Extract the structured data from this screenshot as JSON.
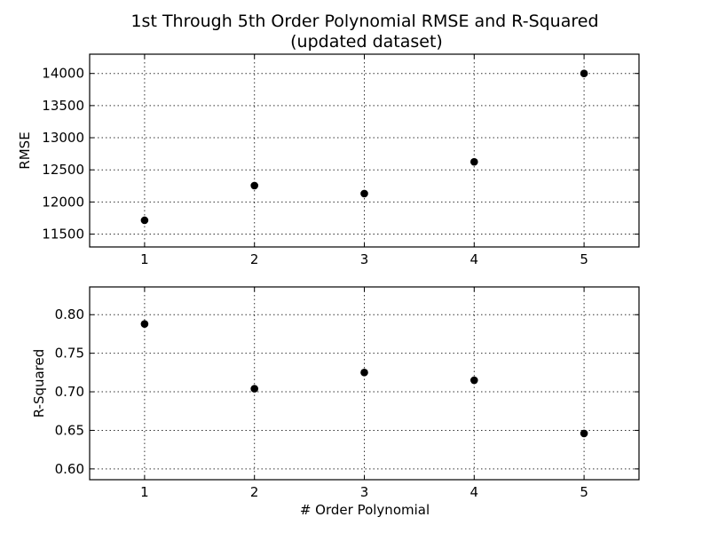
{
  "chart_data": {
    "type": "scatter",
    "title": "1st Through 5th Order Polynomial RMSE and R-Squared",
    "subtitle": "(updated dataset)",
    "xlabel": "# Order Polynomial",
    "panels": [
      {
        "ylabel": "RMSE",
        "x": [
          1,
          2,
          3,
          4,
          5
        ],
        "y": [
          11715,
          12255,
          12130,
          12625,
          14000
        ],
        "xlim": [
          0.5,
          5.5
        ],
        "ylim": [
          11300,
          14300
        ],
        "xticks": [
          1,
          2,
          3,
          4,
          5
        ],
        "yticks": [
          11500,
          12000,
          12500,
          13000,
          13500,
          14000
        ],
        "grid": true
      },
      {
        "ylabel": "R-Squared",
        "x": [
          1,
          2,
          3,
          4,
          5
        ],
        "y": [
          0.788,
          0.704,
          0.725,
          0.715,
          0.646
        ],
        "xlim": [
          0.5,
          5.5
        ],
        "ylim": [
          0.586,
          0.836
        ],
        "xticks": [
          1,
          2,
          3,
          4,
          5
        ],
        "yticks": [
          "0.60",
          "0.65",
          "0.70",
          "0.75",
          "0.80"
        ],
        "grid": true
      }
    ],
    "marker_color": "#000000"
  }
}
